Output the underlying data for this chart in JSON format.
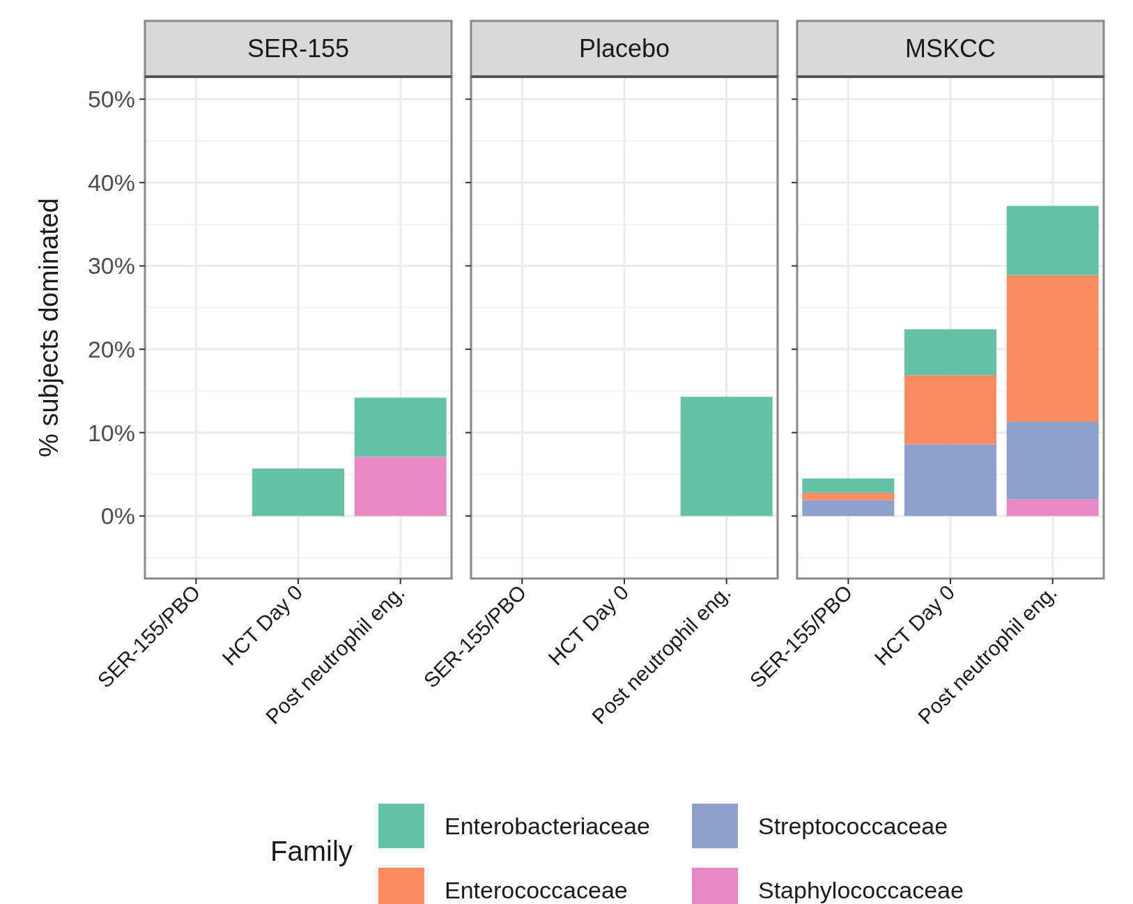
{
  "chart_data": [
    {
      "type": "bar",
      "title": "SER-155",
      "ylabel": "% subjects dominated",
      "categories": [
        "SER-155/PBO",
        "HCT Day 0",
        "Post neutrophil eng."
      ],
      "stacked": true,
      "ylim": [
        -7.5,
        52.7
      ],
      "yticks": [
        {
          "value": 0,
          "label": "0%"
        },
        {
          "value": 10,
          "label": "10%"
        },
        {
          "value": 20,
          "label": "20%"
        },
        {
          "value": 30,
          "label": "30%"
        },
        {
          "value": 40,
          "label": "40%"
        },
        {
          "value": 50,
          "label": "50%"
        }
      ],
      "grid": true,
      "legend": "bottom",
      "legend_title": "Family",
      "series": [
        {
          "name": "Staphylococcaceae",
          "color": "#e78ac3",
          "values": [
            0,
            0,
            7.1
          ]
        },
        {
          "name": "Streptococcaceae",
          "color": "#8da0cb",
          "values": [
            0,
            0,
            0
          ]
        },
        {
          "name": "Enterococcaceae",
          "color": "#fc8d62",
          "values": [
            0,
            0,
            0
          ]
        },
        {
          "name": "Enterobacteriaceae",
          "color": "#66c2a5",
          "values": [
            0,
            5.7,
            7.1
          ]
        }
      ]
    },
    {
      "type": "bar",
      "title": "Placebo",
      "categories": [
        "SER-155/PBO",
        "HCT Day 0",
        "Post neutrophil eng."
      ],
      "stacked": true,
      "ylim": [
        -7.5,
        52.7
      ],
      "yticks": [
        {
          "value": 0,
          "label": null
        },
        {
          "value": 10,
          "label": null
        },
        {
          "value": 20,
          "label": null
        },
        {
          "value": 30,
          "label": null
        },
        {
          "value": 40,
          "label": null
        },
        {
          "value": 50,
          "label": null
        }
      ],
      "grid": true,
      "tick_labels": "x",
      "series": [
        {
          "color": "#e78ac3",
          "values": [
            0,
            0,
            0
          ]
        },
        {
          "color": "#8da0cb",
          "values": [
            0,
            0,
            0
          ]
        },
        {
          "color": "#fc8d62",
          "values": [
            0,
            0,
            0
          ]
        },
        {
          "color": "#66c2a5",
          "values": [
            0,
            0,
            14.3
          ]
        }
      ]
    },
    {
      "type": "bar",
      "title": "MSKCC",
      "categories": [
        "SER-155/PBO",
        "HCT Day 0",
        "Post neutrophil eng."
      ],
      "stacked": true,
      "ylim": [
        -7.5,
        52.7
      ],
      "yticks": [
        {
          "value": 0,
          "label": null
        },
        {
          "value": 10,
          "label": null
        },
        {
          "value": 20,
          "label": null
        },
        {
          "value": 30,
          "label": null
        },
        {
          "value": 40,
          "label": null
        },
        {
          "value": 50,
          "label": null
        }
      ],
      "grid": true,
      "tick_labels": "x",
      "series": [
        {
          "color": "#e78ac3",
          "values": [
            0,
            0,
            2.0
          ]
        },
        {
          "color": "#8da0cb",
          "values": [
            1.9,
            8.6,
            9.3
          ]
        },
        {
          "color": "#fc8d62",
          "values": [
            0.9,
            8.3,
            17.6
          ]
        },
        {
          "color": "#66c2a5",
          "values": [
            1.7,
            5.5,
            8.3
          ]
        }
      ]
    }
  ]
}
